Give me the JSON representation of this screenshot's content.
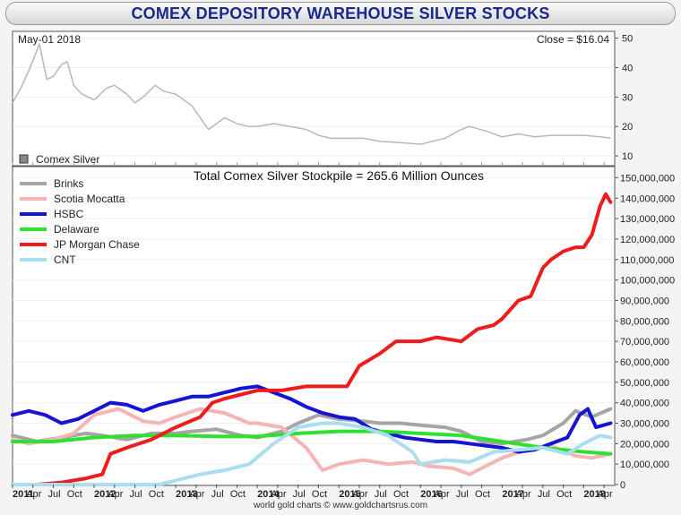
{
  "title": "COMEX DEPOSITORY WAREHOUSE SILVER STOCKS",
  "footer": "world gold charts © www.goldchartsrus.com",
  "top_panel": {
    "date_label": "May-01  2018",
    "close_label": "Close = $16.04",
    "legend_label": "Comex Silver"
  },
  "bottom_panel": {
    "annotation": "Total Comex Silver Stockpile = 265.6 Million Ounces"
  },
  "chart_data": [
    {
      "type": "line",
      "title": "",
      "series": [
        {
          "name": "Comex Silver",
          "color": "#b8b8b8",
          "x": [
            2011.0,
            2011.1,
            2011.2,
            2011.33,
            2011.42,
            2011.5,
            2011.6,
            2011.67,
            2011.75,
            2011.85,
            2012.0,
            2012.15,
            2012.25,
            2012.4,
            2012.5,
            2012.6,
            2012.75,
            2012.85,
            2013.0,
            2013.2,
            2013.3,
            2013.4,
            2013.5,
            2013.6,
            2013.75,
            2013.9,
            2014.0,
            2014.2,
            2014.4,
            2014.6,
            2014.75,
            2014.9,
            2015.0,
            2015.3,
            2015.5,
            2015.75,
            2016.0,
            2016.3,
            2016.5,
            2016.6,
            2016.8,
            2017.0,
            2017.2,
            2017.4,
            2017.6,
            2017.75,
            2018.0,
            2018.2,
            2018.33
          ],
          "values": [
            28,
            33,
            39,
            48,
            36,
            37,
            41,
            42,
            34,
            31,
            29,
            33,
            34,
            31,
            28,
            30,
            34,
            32,
            31,
            27,
            23,
            19,
            21,
            23,
            21,
            20,
            20,
            21,
            20,
            19,
            17,
            16,
            16,
            16,
            15,
            14.5,
            14,
            16,
            19,
            20,
            18.5,
            16.5,
            17.5,
            16.5,
            17,
            17,
            17,
            16.5,
            16.04
          ]
        }
      ],
      "ylim": [
        7,
        52
      ],
      "y_ticks": [
        "10",
        "20",
        "30",
        "40",
        "50"
      ]
    },
    {
      "type": "line",
      "title": "",
      "x_ticks": [
        "2011",
        "Apr",
        "Jul",
        "Oct",
        "2012",
        "Apr",
        "Jul",
        "Oct",
        "2013",
        "Apr",
        "Jul",
        "Oct",
        "2014",
        "Apr",
        "Jul",
        "Oct",
        "2015",
        "Apr",
        "Jul",
        "Oct",
        "2016",
        "Apr",
        "Jul",
        "Oct",
        "2017",
        "Apr",
        "Jul",
        "Oct",
        "2018",
        "Apr"
      ],
      "y_ticks": [
        "0",
        "10,000,000",
        "20,000,000",
        "30,000,000",
        "40,000,000",
        "50,000,000",
        "60,000,000",
        "70,000,000",
        "80,000,000",
        "90,000,000",
        "100,000,000",
        "110,000,000",
        "120,000,000",
        "130,000,000",
        "140,000,000",
        "150,000,000"
      ],
      "ylim": [
        0,
        155000000
      ],
      "series": [
        {
          "name": "Brinks",
          "color": "#a5a5a5",
          "x": [
            2011.0,
            2011.3,
            2011.6,
            2011.9,
            2012.1,
            2012.4,
            2012.7,
            2013.0,
            2013.2,
            2013.5,
            2013.8,
            2014.0,
            2014.3,
            2014.5,
            2014.75,
            2015.0,
            2015.3,
            2015.5,
            2015.75,
            2016.0,
            2016.3,
            2016.5,
            2016.75,
            2017.0,
            2017.3,
            2017.5,
            2017.75,
            2017.9,
            2018.1,
            2018.33
          ],
          "values": [
            24000000,
            21000000,
            23000000,
            25000000,
            24000000,
            22000000,
            25000000,
            25000000,
            26000000,
            27000000,
            24000000,
            23000000,
            26000000,
            30000000,
            34000000,
            32000000,
            31000000,
            30000000,
            30000000,
            29000000,
            28000000,
            26000000,
            21000000,
            20000000,
            22000000,
            24000000,
            30000000,
            36000000,
            33000000,
            37000000
          ]
        },
        {
          "name": "Scotia Mocatta",
          "color": "#f5b5b5",
          "x": [
            2011.0,
            2011.2,
            2011.5,
            2011.75,
            2012.0,
            2012.3,
            2012.6,
            2012.8,
            2013.0,
            2013.3,
            2013.6,
            2013.9,
            2014.0,
            2014.3,
            2014.6,
            2014.8,
            2015.0,
            2015.3,
            2015.6,
            2015.9,
            2016.1,
            2016.4,
            2016.6,
            2016.8,
            2017.0,
            2017.3,
            2017.6,
            2017.9,
            2018.1,
            2018.33
          ],
          "values": [
            22000000,
            20000000,
            22000000,
            25000000,
            34000000,
            37000000,
            31000000,
            30000000,
            33000000,
            37000000,
            35000000,
            30000000,
            30000000,
            28000000,
            18000000,
            7000000,
            10000000,
            12000000,
            10000000,
            11000000,
            9000000,
            8000000,
            5000000,
            9000000,
            13000000,
            17000000,
            19000000,
            14000000,
            13000000,
            15000000
          ]
        },
        {
          "name": "HSBC",
          "color": "#1414d2",
          "x": [
            2011.0,
            2011.2,
            2011.4,
            2011.6,
            2011.8,
            2012.0,
            2012.2,
            2012.4,
            2012.6,
            2012.8,
            2013.0,
            2013.2,
            2013.4,
            2013.6,
            2013.8,
            2014.0,
            2014.2,
            2014.4,
            2014.6,
            2014.8,
            2015.0,
            2015.2,
            2015.4,
            2015.6,
            2015.8,
            2016.0,
            2016.2,
            2016.4,
            2016.6,
            2016.8,
            2017.0,
            2017.2,
            2017.4,
            2017.6,
            2017.8,
            2017.95,
            2018.05,
            2018.15,
            2018.33
          ],
          "values": [
            34000000,
            36000000,
            34000000,
            30000000,
            32000000,
            36000000,
            40000000,
            39000000,
            36000000,
            39000000,
            41000000,
            43000000,
            43000000,
            45000000,
            47000000,
            48000000,
            45000000,
            42000000,
            38000000,
            35000000,
            33000000,
            32000000,
            27000000,
            25000000,
            23000000,
            22000000,
            21000000,
            21000000,
            20000000,
            19000000,
            18000000,
            16000000,
            17000000,
            20000000,
            23000000,
            34000000,
            37000000,
            28000000,
            30000000
          ]
        },
        {
          "name": "Delaware",
          "color": "#30e030",
          "x": [
            2011.0,
            2011.5,
            2012.0,
            2012.5,
            2013.0,
            2013.5,
            2014.0,
            2014.5,
            2015.0,
            2015.5,
            2016.0,
            2016.5,
            2017.0,
            2017.5,
            2018.0,
            2018.33
          ],
          "values": [
            21000000,
            21000000,
            23000000,
            24000000,
            24000000,
            23500000,
            23500000,
            25000000,
            26000000,
            26000000,
            25000000,
            24000000,
            21000000,
            18000000,
            16000000,
            15000000
          ]
        },
        {
          "name": "JP Morgan Chase",
          "color": "#ee1c1c",
          "x": [
            2011.0,
            2011.3,
            2011.6,
            2011.9,
            2012.1,
            2012.2,
            2012.4,
            2012.7,
            2013.0,
            2013.3,
            2013.45,
            2013.6,
            2013.8,
            2014.0,
            2014.3,
            2014.6,
            2014.9,
            2015.1,
            2015.25,
            2015.5,
            2015.7,
            2016.0,
            2016.2,
            2016.5,
            2016.7,
            2016.9,
            2017.0,
            2017.2,
            2017.35,
            2017.5,
            2017.6,
            2017.75,
            2017.9,
            2018.0,
            2018.1,
            2018.2,
            2018.27,
            2018.33
          ],
          "values": [
            0,
            0,
            1000000,
            3000000,
            5000000,
            15000000,
            18000000,
            22000000,
            28000000,
            33000000,
            40000000,
            42000000,
            44000000,
            46000000,
            46000000,
            48000000,
            48000000,
            48000000,
            58000000,
            64000000,
            70000000,
            70000000,
            72000000,
            70000000,
            76000000,
            78000000,
            81000000,
            90000000,
            92000000,
            106000000,
            110000000,
            114000000,
            116000000,
            116000000,
            122000000,
            136000000,
            142000000,
            138000000
          ]
        },
        {
          "name": "CNT",
          "color": "#aaddee",
          "x": [
            2011.0,
            2012.8,
            2013.0,
            2013.3,
            2013.6,
            2013.9,
            2014.2,
            2014.5,
            2014.8,
            2015.0,
            2015.3,
            2015.6,
            2015.9,
            2016.0,
            2016.3,
            2016.6,
            2016.9,
            2017.2,
            2017.5,
            2017.8,
            2018.0,
            2018.2,
            2018.33
          ],
          "values": [
            0,
            0,
            2000000,
            5000000,
            7000000,
            10000000,
            20000000,
            28000000,
            30000000,
            30000000,
            28000000,
            24000000,
            16000000,
            10000000,
            12000000,
            11000000,
            16000000,
            17000000,
            18000000,
            15000000,
            20000000,
            24000000,
            23000000
          ]
        }
      ]
    }
  ]
}
